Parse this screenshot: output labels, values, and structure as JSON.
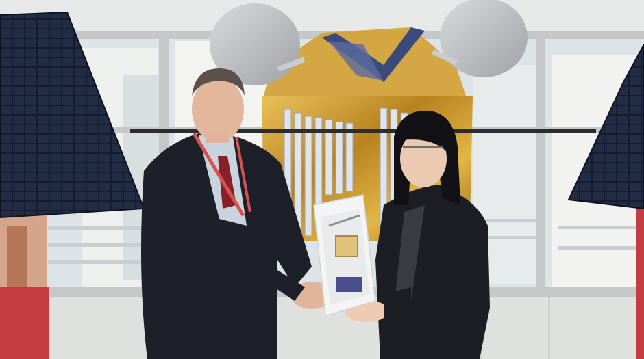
{
  "scene": {
    "subject": "photo",
    "colors": {
      "wall": "#e8ebea",
      "window_glass": "#dfe6ea",
      "building_outside": "#f1f2f0",
      "frame": "#c9cdcd",
      "solar_panel": "#1a2236",
      "gold_foil": "#c99a2c",
      "dish": "#bdbfc2",
      "suit": "#1c1f27",
      "skin": "#e2b59b",
      "lanyard": "#d6524f",
      "red_banner": "#c03a40",
      "model_white": "#f4f4f4"
    }
  }
}
